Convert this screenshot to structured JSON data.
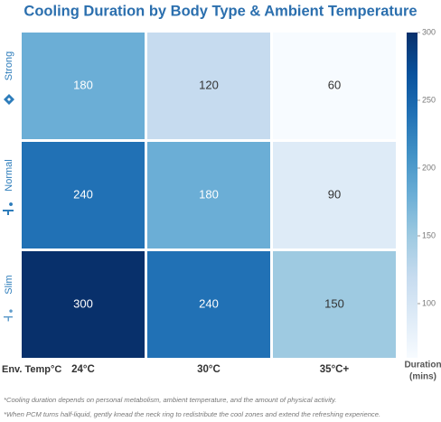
{
  "chart_data": {
    "type": "heatmap",
    "title": "Cooling Duration by Body Type & Ambient Temperature",
    "x_categories": [
      "24°C",
      "30°C",
      "35°C+"
    ],
    "y_categories": [
      "Strong",
      "Normal",
      "Slim"
    ],
    "values": [
      [
        180,
        120,
        60
      ],
      [
        240,
        180,
        90
      ],
      [
        300,
        240,
        150
      ]
    ],
    "xlabel": "Env. Temp°C",
    "colorbar_label": [
      "Duration",
      "(mins)"
    ],
    "colormap": "Blues",
    "clim": [
      60,
      300
    ],
    "cticks": [
      100,
      150,
      200,
      250,
      300
    ],
    "notes": [
      "*Cooling duration depends on personal metabolism, ambient temperature, and the amount of physical activity.",
      "*When PCM turns half-liquid, gently knead the neck ring to redistribute the cool zones and extend the refreshing experience."
    ]
  }
}
